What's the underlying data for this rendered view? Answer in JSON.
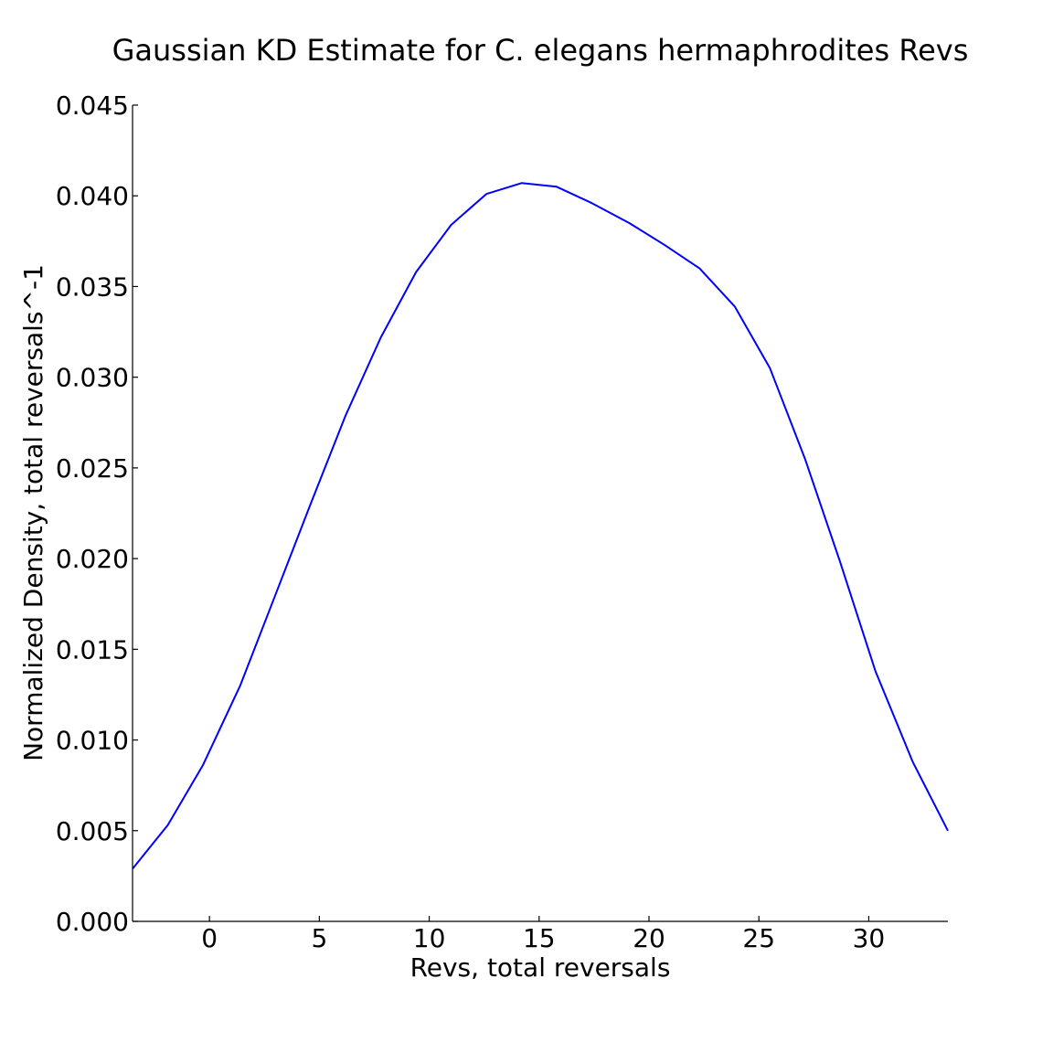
{
  "chart_data": {
    "type": "line",
    "title": "Gaussian KD Estimate for C. elegans hermaphrodites Revs",
    "xlabel": "Revs, total reversals",
    "ylabel": "Normalized Density, total reversals^-1",
    "xlim": [
      -3.5,
      33.6
    ],
    "ylim": [
      0.0,
      0.045
    ],
    "xticks": [
      0,
      5,
      10,
      15,
      20,
      25,
      30
    ],
    "yticks": [
      0.0,
      0.005,
      0.01,
      0.015,
      0.02,
      0.025,
      0.03,
      0.035,
      0.04,
      0.045
    ],
    "ytick_labels": [
      "0.000",
      "0.005",
      "0.010",
      "0.015",
      "0.020",
      "0.025",
      "0.030",
      "0.035",
      "0.040",
      "0.045"
    ],
    "grid": false,
    "series": [
      {
        "color": "#0000ff",
        "x": [
          -3.5,
          -1.9,
          -0.3,
          1.4,
          3.0,
          4.6,
          6.2,
          7.8,
          9.4,
          11.0,
          12.6,
          14.2,
          15.8,
          17.4,
          19.1,
          20.7,
          22.3,
          23.9,
          25.5,
          27.1,
          28.7,
          30.3,
          32.0,
          33.6
        ],
        "y": [
          0.0029,
          0.0053,
          0.0086,
          0.013,
          0.018,
          0.023,
          0.0279,
          0.0322,
          0.0358,
          0.0384,
          0.0401,
          0.0407,
          0.0405,
          0.0396,
          0.0385,
          0.0373,
          0.036,
          0.0339,
          0.0305,
          0.0255,
          0.0198,
          0.0138,
          0.0088,
          0.005
        ]
      }
    ]
  }
}
